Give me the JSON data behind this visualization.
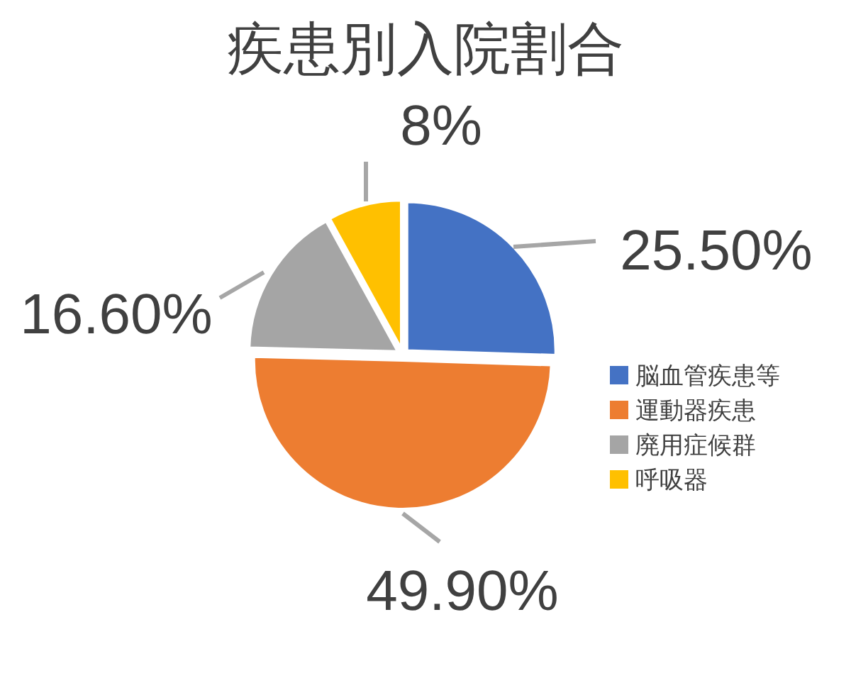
{
  "chart_data": {
    "type": "pie",
    "title": "疾患別入院割合",
    "categories": [
      "脳血管疾患等",
      "運動器疾患",
      "廃用症候群",
      "呼吸器"
    ],
    "values": [
      25.5,
      49.9,
      16.6,
      8
    ],
    "colors": [
      "#4472c4",
      "#ed7d31",
      "#a5a5a5",
      "#ffc000"
    ],
    "value_labels": [
      "25.50%",
      "49.90%",
      "16.60%",
      "8%"
    ],
    "legend": "right"
  }
}
